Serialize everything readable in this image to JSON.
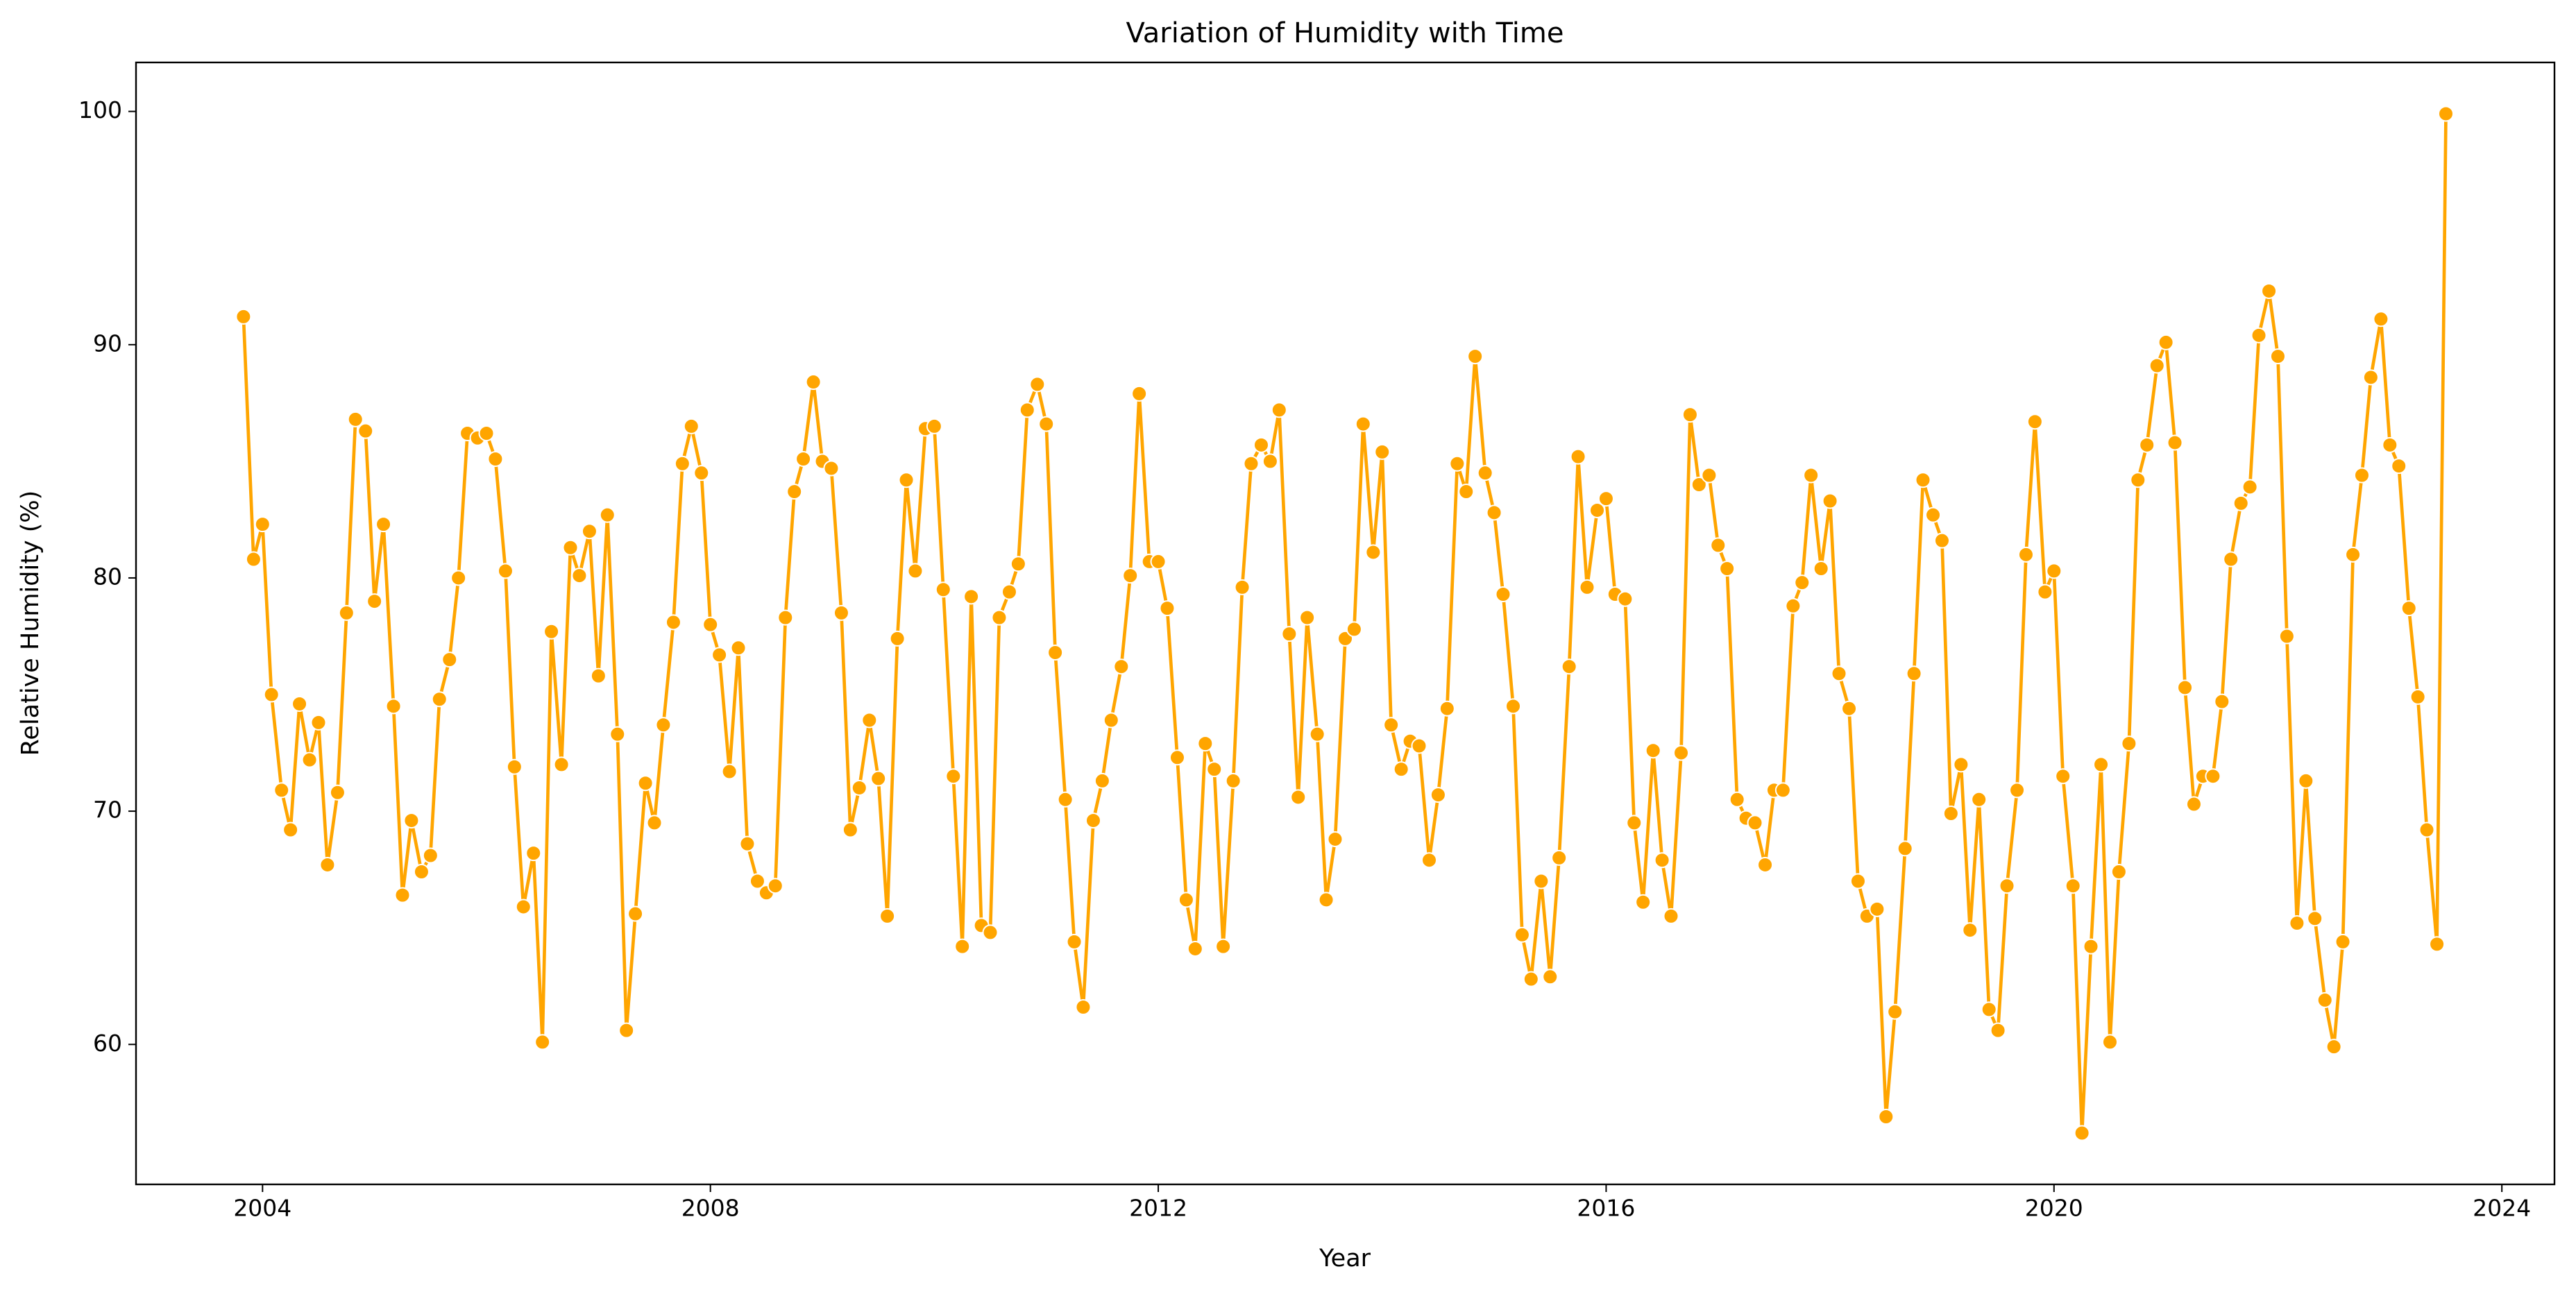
{
  "chart_data": {
    "type": "line",
    "title": "Variation of Humidity with Time",
    "xlabel": "Year",
    "ylabel": "Relative Humidity (%)",
    "color": "#ffa500",
    "grid": false,
    "markers": true,
    "xlim": [
      2002.87,
      2024.47
    ],
    "xticks": [
      2004,
      2008,
      2012,
      2016,
      2020,
      2024
    ],
    "ylim": [
      54.0,
      102.1
    ],
    "yticks": [
      60,
      70,
      80,
      90,
      100
    ],
    "x": [
      2003.83,
      2003.92,
      2004,
      2004.08,
      2004.17,
      2004.25,
      2004.33,
      2004.42,
      2004.5,
      2004.58,
      2004.67,
      2004.75,
      2004.83,
      2004.92,
      2005,
      2005.08,
      2005.17,
      2005.25,
      2005.33,
      2005.42,
      2005.5,
      2005.58,
      2005.67,
      2005.75,
      2005.83,
      2005.92,
      2006,
      2006.08,
      2006.17,
      2006.25,
      2006.33,
      2006.42,
      2006.5,
      2006.58,
      2006.67,
      2006.75,
      2006.83,
      2006.92,
      2007,
      2007.08,
      2007.17,
      2007.25,
      2007.33,
      2007.42,
      2007.5,
      2007.58,
      2007.67,
      2007.75,
      2007.83,
      2007.92,
      2008,
      2008.08,
      2008.17,
      2008.25,
      2008.33,
      2008.42,
      2008.5,
      2008.58,
      2008.67,
      2008.75,
      2008.83,
      2008.92,
      2009,
      2009.08,
      2009.17,
      2009.25,
      2009.33,
      2009.42,
      2009.5,
      2009.58,
      2009.67,
      2009.75,
      2009.83,
      2009.92,
      2010,
      2010.08,
      2010.17,
      2010.25,
      2010.33,
      2010.42,
      2010.5,
      2010.58,
      2010.67,
      2010.75,
      2010.83,
      2010.92,
      2011,
      2011.08,
      2011.17,
      2011.25,
      2011.33,
      2011.42,
      2011.5,
      2011.58,
      2011.67,
      2011.75,
      2011.83,
      2011.92,
      2012,
      2012.08,
      2012.17,
      2012.25,
      2012.33,
      2012.42,
      2012.5,
      2012.58,
      2012.67,
      2012.75,
      2012.83,
      2012.92,
      2013,
      2013.08,
      2013.17,
      2013.25,
      2013.33,
      2013.42,
      2013.5,
      2013.58,
      2013.67,
      2013.75,
      2013.83,
      2013.92,
      2014,
      2014.08,
      2014.17,
      2014.25,
      2014.33,
      2014.42,
      2014.5,
      2014.58,
      2014.67,
      2014.75,
      2014.83,
      2014.92,
      2015,
      2015.08,
      2015.17,
      2015.25,
      2015.33,
      2015.42,
      2015.5,
      2015.58,
      2015.67,
      2015.75,
      2015.83,
      2015.92,
      2016,
      2016.08,
      2016.17,
      2016.25,
      2016.33,
      2016.42,
      2016.5,
      2016.58,
      2016.67,
      2016.75,
      2016.83,
      2016.92,
      2017,
      2017.08,
      2017.17,
      2017.25,
      2017.33,
      2017.42,
      2017.5,
      2017.58,
      2017.67,
      2017.75,
      2017.83,
      2017.92,
      2018,
      2018.08,
      2018.17,
      2018.25,
      2018.33,
      2018.42,
      2018.5,
      2018.58,
      2018.67,
      2018.75,
      2018.83,
      2018.92,
      2019,
      2019.08,
      2019.17,
      2019.25,
      2019.33,
      2019.42,
      2019.5,
      2019.58,
      2019.67,
      2019.75,
      2019.83,
      2019.92,
      2020,
      2020.08,
      2020.17,
      2020.25,
      2020.33,
      2020.42,
      2020.5,
      2020.58,
      2020.67,
      2020.75,
      2020.83,
      2020.92,
      2021,
      2021.08,
      2021.17,
      2021.25,
      2021.33,
      2021.42,
      2021.5,
      2021.58,
      2021.67,
      2021.75,
      2021.83,
      2021.92,
      2022,
      2022.08,
      2022.17,
      2022.25,
      2022.33,
      2022.42,
      2022.5,
      2022.58,
      2022.67,
      2022.75,
      2022.83,
      2022.92,
      2023,
      2023.08,
      2023.17,
      2023.25,
      2023.33,
      2023.42,
      2023.5
    ],
    "values": [
      91.2,
      80.8,
      82.3,
      75.0,
      70.9,
      69.2,
      74.6,
      72.2,
      73.8,
      67.7,
      70.8,
      78.5,
      86.8,
      86.3,
      79.0,
      82.3,
      74.5,
      66.4,
      69.6,
      67.4,
      68.1,
      74.8,
      76.5,
      80.0,
      86.2,
      86.0,
      86.2,
      85.1,
      80.3,
      71.9,
      65.9,
      68.2,
      60.1,
      77.7,
      72.0,
      81.3,
      80.1,
      82.0,
      75.8,
      82.7,
      73.3,
      60.6,
      65.6,
      71.2,
      69.5,
      73.7,
      78.1,
      84.9,
      86.5,
      84.5,
      78.0,
      76.7,
      71.7,
      77.0,
      68.6,
      67.0,
      66.5,
      66.8,
      78.3,
      83.7,
      85.1,
      88.4,
      85.0,
      84.7,
      78.5,
      69.2,
      71.0,
      73.9,
      71.4,
      65.5,
      77.4,
      84.2,
      80.3,
      86.4,
      86.5,
      79.5,
      71.5,
      64.2,
      79.2,
      65.1,
      64.8,
      78.3,
      79.4,
      80.6,
      87.2,
      88.3,
      86.6,
      76.8,
      70.5,
      64.4,
      61.6,
      69.6,
      71.3,
      73.9,
      76.2,
      80.1,
      87.9,
      80.7,
      80.7,
      78.7,
      72.3,
      66.2,
      64.1,
      72.9,
      71.8,
      64.2,
      71.3,
      79.6,
      84.9,
      85.7,
      85.0,
      87.2,
      77.6,
      70.6,
      78.3,
      73.3,
      66.2,
      68.8,
      77.4,
      77.8,
      86.6,
      81.1,
      85.4,
      73.7,
      71.8,
      73.0,
      72.8,
      67.9,
      70.7,
      74.4,
      84.9,
      83.7,
      89.5,
      84.5,
      82.8,
      79.3,
      74.5,
      64.7,
      62.8,
      67.0,
      62.9,
      68.0,
      76.2,
      85.2,
      79.6,
      82.9,
      83.4,
      79.3,
      79.1,
      69.5,
      66.1,
      72.6,
      67.9,
      65.5,
      72.5,
      87.0,
      84.0,
      84.4,
      81.4,
      80.4,
      70.5,
      69.7,
      69.5,
      67.7,
      70.9,
      70.9,
      78.8,
      79.8,
      84.4,
      80.4,
      83.3,
      75.9,
      74.4,
      67.0,
      65.5,
      65.8,
      56.9,
      61.4,
      68.4,
      75.9,
      84.2,
      82.7,
      81.6,
      69.9,
      72.0,
      64.9,
      70.5,
      61.5,
      60.6,
      66.8,
      70.9,
      81.0,
      86.7,
      79.4,
      80.3,
      71.5,
      66.8,
      56.2,
      64.2,
      72.0,
      60.1,
      67.4,
      72.9,
      84.2,
      85.7,
      89.1,
      90.1,
      85.8,
      75.3,
      70.3,
      71.5,
      71.5,
      74.7,
      80.8,
      83.2,
      83.9,
      90.4,
      92.3,
      89.5,
      77.5,
      65.2,
      71.3,
      65.4,
      61.9,
      59.9,
      64.4,
      81.0,
      84.4,
      88.6,
      91.1,
      85.7,
      84.8,
      78.7,
      74.9,
      69.2,
      64.3,
      99.9
    ]
  }
}
